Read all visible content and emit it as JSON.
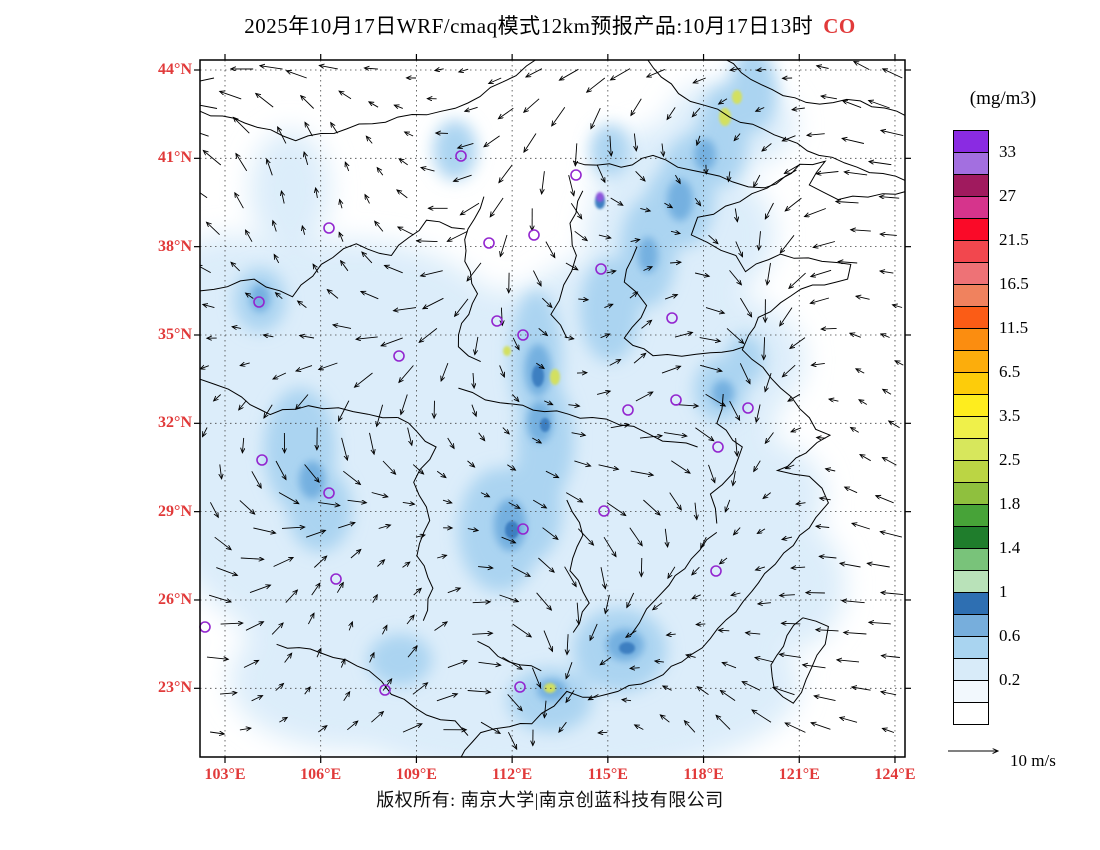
{
  "title": {
    "text": "2025年10月17日WRF/cmaq模式12km预报产品:10月17日13时",
    "species": "CO"
  },
  "axes": {
    "lat_labels": [
      "44°N",
      "41°N",
      "38°N",
      "35°N",
      "32°N",
      "29°N",
      "26°N",
      "23°N"
    ],
    "lon_labels": [
      "103°E",
      "106°E",
      "109°E",
      "112°E",
      "115°E",
      "118°E",
      "121°E",
      "124°E"
    ]
  },
  "colorbar": {
    "unit": "(mg/m3)",
    "segments": [
      {
        "color": "#8A2BE2",
        "label": "33"
      },
      {
        "color": "#A36FE0",
        "label": ""
      },
      {
        "color": "#A01A5E",
        "label": "27"
      },
      {
        "color": "#D6348C",
        "label": ""
      },
      {
        "color": "#FA0A28",
        "label": "21.5"
      },
      {
        "color": "#F2474E",
        "label": ""
      },
      {
        "color": "#EE7276",
        "label": "16.5"
      },
      {
        "color": "#F0825E",
        "label": ""
      },
      {
        "color": "#FB5C16",
        "label": "11.5"
      },
      {
        "color": "#FB8D10",
        "label": ""
      },
      {
        "color": "#FCAD0C",
        "label": "6.5"
      },
      {
        "color": "#FDCC0A",
        "label": ""
      },
      {
        "color": "#FEED1E",
        "label": "3.5"
      },
      {
        "color": "#EFF04A",
        "label": ""
      },
      {
        "color": "#D7E75C",
        "label": "2.5"
      },
      {
        "color": "#BBD544",
        "label": ""
      },
      {
        "color": "#8FC03E",
        "label": "1.8"
      },
      {
        "color": "#47A338",
        "label": ""
      },
      {
        "color": "#1F7D2C",
        "label": "1.4"
      },
      {
        "color": "#79C37A",
        "label": ""
      },
      {
        "color": "#B9E2B9",
        "label": "1"
      },
      {
        "color": "#2E6FB2",
        "label": ""
      },
      {
        "color": "#77AEDC",
        "label": "0.6"
      },
      {
        "color": "#A9D4F0",
        "label": ""
      },
      {
        "color": "#D8EBF9",
        "label": "0.2"
      },
      {
        "color": "#F2F8FD",
        "label": ""
      },
      {
        "color": "#FFFFFF",
        "label": ""
      }
    ]
  },
  "wind_legend": {
    "label": "10 m/s"
  },
  "footer": {
    "text": "版权所有: 南京大学|南京创蓝科技有限公司"
  },
  "colors": {
    "accent_red": "#E13A3A",
    "marker_purple": "#9326CF",
    "frame": "#000000",
    "shade_light": "#DCEDFA",
    "shade_medium": "#ABD4F1",
    "shade_deep": "#74B0E0",
    "shade_dark": "#3E7FC1",
    "accent_yellowgreen": "#D3E060",
    "accent_violet": "#9055DC"
  },
  "markers": [
    [
      59,
      242
    ],
    [
      129,
      168
    ],
    [
      261,
      96
    ],
    [
      376,
      115
    ],
    [
      401,
      209
    ],
    [
      289,
      183
    ],
    [
      334,
      175
    ],
    [
      297,
      261
    ],
    [
      323,
      275
    ],
    [
      199,
      296
    ],
    [
      428,
      350
    ],
    [
      476,
      340
    ],
    [
      548,
      348
    ],
    [
      518,
      387
    ],
    [
      62,
      400
    ],
    [
      129,
      433
    ],
    [
      323,
      469
    ],
    [
      404,
      451
    ],
    [
      516,
      511
    ],
    [
      5,
      567
    ],
    [
      185,
      630
    ],
    [
      320,
      627
    ],
    [
      136,
      519
    ],
    [
      472,
      258
    ]
  ]
}
